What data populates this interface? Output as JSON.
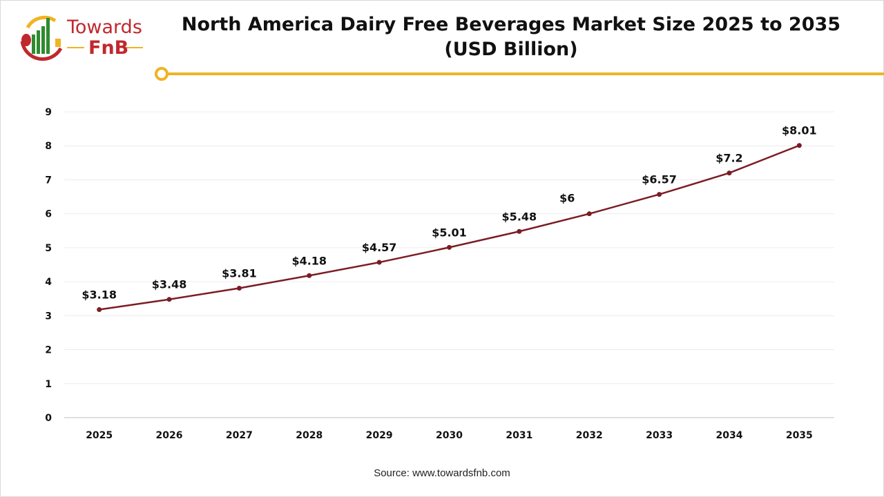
{
  "logo": {
    "line1": "Towards",
    "line2": "FnB"
  },
  "source": "Source: www.towardsfnb.com",
  "colors": {
    "line": "#7b1c24",
    "accent": "#f0b323",
    "logo_red": "#c0282d",
    "logo_green": "#2e8b2e"
  },
  "chart_data": {
    "type": "line",
    "title": "North America Dairy Free Beverages Market Size 2025 to 2035 (USD Billion)",
    "title_lines": [
      "North America Dairy Free Beverages Market Size 2025 to 2035",
      "(USD Billion)"
    ],
    "categories": [
      "2025",
      "2026",
      "2027",
      "2028",
      "2029",
      "2030",
      "2031",
      "2032",
      "2033",
      "2034",
      "2035"
    ],
    "values": [
      3.18,
      3.48,
      3.81,
      4.18,
      4.57,
      5.01,
      5.48,
      6,
      6.57,
      7.2,
      8.01
    ],
    "data_labels": [
      "$3.18",
      "$3.48",
      "$3.81",
      "$4.18",
      "$4.57",
      "$5.01",
      "$5.48",
      "$6",
      "$6.57",
      "$7.2",
      "$8.01"
    ],
    "ylim": [
      0,
      9
    ],
    "yticks": [
      "0",
      "1",
      "2",
      "3",
      "4",
      "5",
      "6",
      "7",
      "8",
      "9"
    ],
    "grid": true,
    "xlabel": "",
    "ylabel": ""
  }
}
